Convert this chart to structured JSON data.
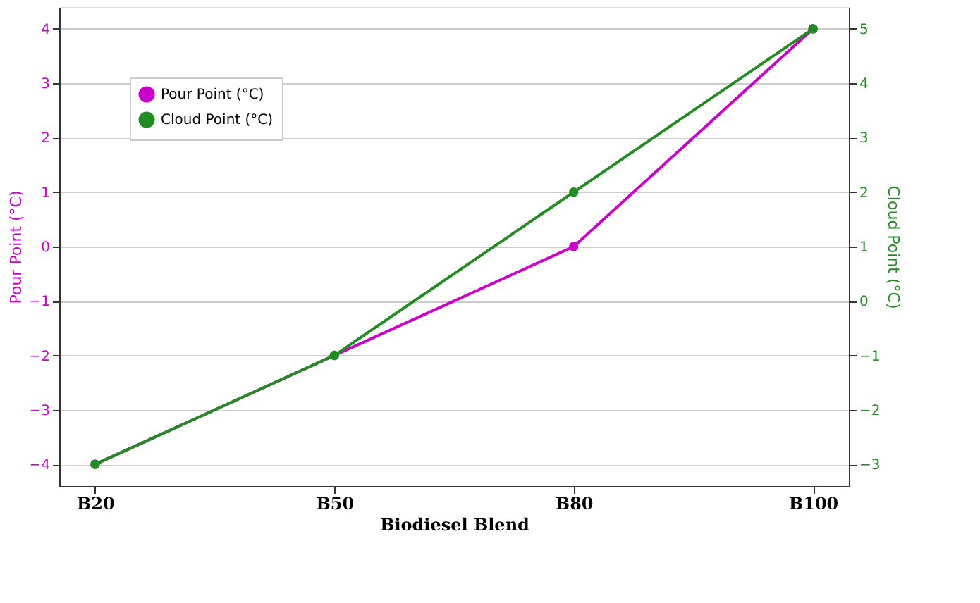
{
  "chart_data": {
    "type": "line",
    "xlabel": "Biodiesel Blend",
    "ylabel": "Pour Point (°C)",
    "y2label": "Cloud Point (°C)",
    "categories": [
      "B20",
      "B50",
      "B80",
      "B100"
    ],
    "series": [
      {
        "name": "Pour Point (°C)",
        "color": "#cc00cc",
        "values": [
          -4,
          -2,
          0,
          4
        ]
      },
      {
        "name": "Cloud Point (°C)",
        "color": "#228b22",
        "values": [
          -3,
          -1,
          2,
          5
        ],
        "axis": "y2"
      }
    ],
    "ylim": [
      -4.4,
      4.4
    ],
    "yticks": [
      -4,
      -3,
      -2,
      -1,
      0,
      1,
      2,
      3,
      4
    ],
    "y2lim": [
      -3.4,
      5.4
    ],
    "y2ticks": [
      -3,
      -2,
      -1,
      0,
      1,
      2,
      3,
      4,
      5
    ],
    "grid": "y",
    "legend": "top left",
    "marker": "circle",
    "line_style": "solid"
  }
}
